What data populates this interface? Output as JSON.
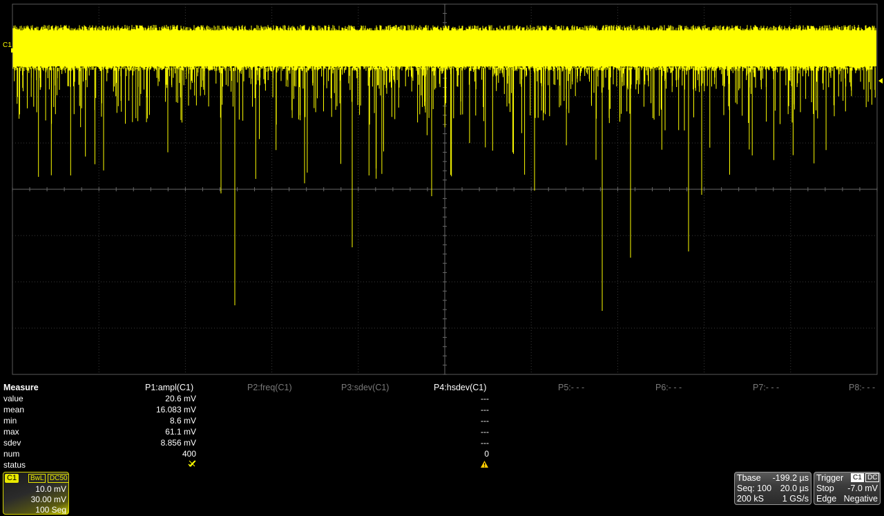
{
  "channel_marker": "C1",
  "grid": {
    "divisions_x": 10,
    "divisions_y": 8
  },
  "trace": {
    "color": "#ffff00"
  },
  "measure": {
    "title": "Measure",
    "params": [
      {
        "label": "P1:ampl(C1)",
        "active": true
      },
      {
        "label": "P2:freq(C1)",
        "active": false
      },
      {
        "label": "P3:sdev(C1)",
        "active": false
      },
      {
        "label": "P4:hsdev(C1)",
        "active": true
      },
      {
        "label": "P5:- - -",
        "active": false
      },
      {
        "label": "P6:- - -",
        "active": false
      },
      {
        "label": "P7:- - -",
        "active": false
      },
      {
        "label": "P8:- - -",
        "active": false
      }
    ],
    "rows": [
      {
        "label": "value",
        "p1": "20.6 mV",
        "p4": "---"
      },
      {
        "label": "mean",
        "p1": "16.083 mV",
        "p4": "---"
      },
      {
        "label": "min",
        "p1": "8.6 mV",
        "p4": "---"
      },
      {
        "label": "max",
        "p1": "61.1 mV",
        "p4": "---"
      },
      {
        "label": "sdev",
        "p1": "8.856 mV",
        "p4": "---"
      },
      {
        "label": "num",
        "p1": "400",
        "p4": "0"
      },
      {
        "label": "status",
        "p1": "",
        "p4": ""
      }
    ],
    "status_icons": {
      "p1": "crossed-check-icon",
      "p4": "warning-triangle-icon"
    }
  },
  "c1_descriptor": {
    "tag": "C1",
    "flags": [
      "BwL",
      "DC50"
    ],
    "volts_div": "10.0 mV",
    "offset": "30.00 mV",
    "segments": "100 Seg"
  },
  "timebase": {
    "label": "Tbase",
    "delay": "-199.2 µs",
    "seq": "Seq: 100",
    "time_div": "20.0 µs",
    "samples": "200 kS",
    "rate": "1 GS/s"
  },
  "trigger": {
    "label": "Trigger",
    "source": "C1",
    "coupling": "DC",
    "mode": "Stop",
    "level": "-7.0 mV",
    "type": "Edge",
    "slope": "Negative"
  }
}
